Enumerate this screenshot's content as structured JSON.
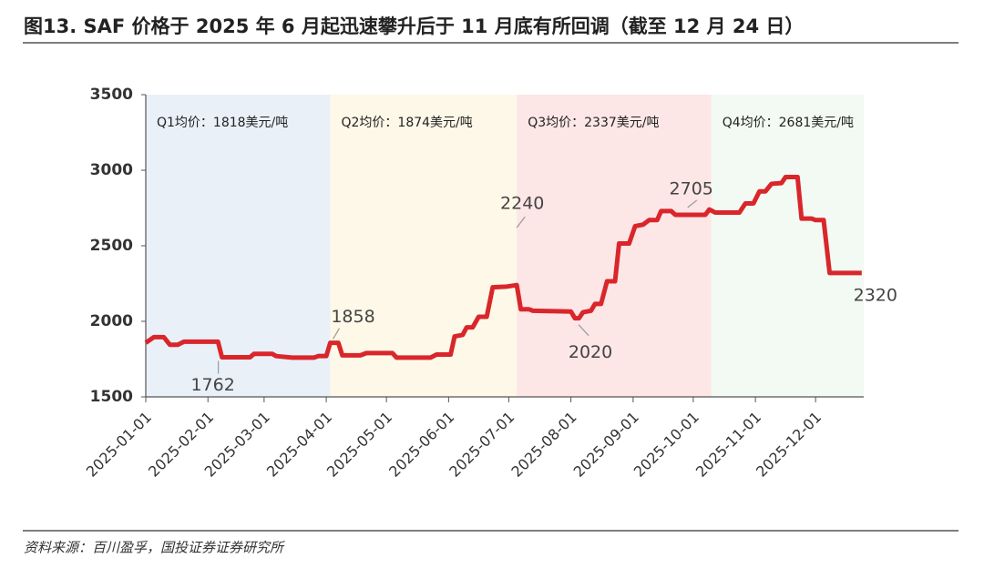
{
  "chart_data": {
    "type": "line",
    "title": "图13. SAF 价格于 2025 年 6 月起迅速攀升后于 11 月底有所回调（截至 12 月 24 日）",
    "source": "资料来源：百川盈孚，国投证券证券研究所",
    "x": [
      "2025-01-01",
      "2025-01-05",
      "2025-01-10",
      "2025-01-13",
      "2025-01-17",
      "2025-01-20",
      "2025-02-06",
      "2025-02-08",
      "2025-02-22",
      "2025-02-24",
      "2025-03-05",
      "2025-03-07",
      "2025-03-15",
      "2025-03-26",
      "2025-03-28",
      "2025-04-01",
      "2025-04-03",
      "2025-04-07",
      "2025-04-09",
      "2025-04-18",
      "2025-04-21",
      "2025-05-04",
      "2025-05-06",
      "2025-05-23",
      "2025-05-26",
      "2025-06-02",
      "2025-06-04",
      "2025-06-08",
      "2025-06-10",
      "2025-06-13",
      "2025-06-16",
      "2025-06-20",
      "2025-06-23",
      "2025-06-30",
      "2025-07-05",
      "2025-07-07",
      "2025-07-11",
      "2025-07-13",
      "2025-08-01",
      "2025-08-03",
      "2025-08-05",
      "2025-08-07",
      "2025-08-11",
      "2025-08-13",
      "2025-08-16",
      "2025-08-19",
      "2025-08-23",
      "2025-08-25",
      "2025-08-30",
      "2025-09-02",
      "2025-09-06",
      "2025-09-09",
      "2025-09-13",
      "2025-09-15",
      "2025-09-20",
      "2025-09-22",
      "2025-10-07",
      "2025-10-09",
      "2025-10-12",
      "2025-10-24",
      "2025-10-27",
      "2025-10-31",
      "2025-11-03",
      "2025-11-06",
      "2025-11-09",
      "2025-11-14",
      "2025-11-16",
      "2025-11-22",
      "2025-11-24",
      "2025-11-29",
      "2025-12-01",
      "2025-12-05",
      "2025-12-08",
      "2025-12-24"
    ],
    "series": [
      {
        "name": "SAF",
        "color": "#d9262b",
        "values": [
          1858,
          1895,
          1895,
          1845,
          1845,
          1865,
          1865,
          1762,
          1762,
          1785,
          1785,
          1770,
          1760,
          1760,
          1770,
          1770,
          1858,
          1858,
          1775,
          1775,
          1790,
          1790,
          1760,
          1760,
          1780,
          1780,
          1900,
          1910,
          1960,
          1960,
          2030,
          2030,
          2225,
          2230,
          2240,
          2080,
          2080,
          2070,
          2065,
          2020,
          2020,
          2060,
          2070,
          2115,
          2115,
          2265,
          2265,
          2515,
          2515,
          2630,
          2640,
          2670,
          2670,
          2730,
          2730,
          2705,
          2705,
          2740,
          2720,
          2720,
          2780,
          2780,
          2860,
          2860,
          2910,
          2915,
          2955,
          2955,
          2680,
          2680,
          2670,
          2670,
          2320,
          2320
        ]
      }
    ],
    "xlim": [
      "2025-01-01",
      "2025-12-25"
    ],
    "xticks": [
      "2025-01-01",
      "2025-02-01",
      "2025-03-01",
      "2025-04-01",
      "2025-05-01",
      "2025-06-01",
      "2025-07-01",
      "2025-08-01",
      "2025-09-01",
      "2025-10-01",
      "2025-11-01",
      "2025-12-01"
    ],
    "ylim": [
      1500,
      3500
    ],
    "yticks": [
      1500,
      2000,
      2500,
      3000,
      3500
    ],
    "regions": [
      {
        "label": "Q1均价：1818美元/吨",
        "start": "2025-01-01",
        "end": "2025-04-03",
        "color": "#e9f0f8"
      },
      {
        "label": "Q2均价：1874美元/吨",
        "start": "2025-04-03",
        "end": "2025-07-05",
        "color": "#fdf8e8"
      },
      {
        "label": "Q3均价：2337美元/吨",
        "start": "2025-07-05",
        "end": "2025-10-10",
        "color": "#fde6e6"
      },
      {
        "label": "Q4均价：2681美元/吨",
        "start": "2025-10-10",
        "end": "2025-12-25",
        "color": "#f3f9f3"
      }
    ],
    "annotations": [
      {
        "label": "1762",
        "x": "2025-02-08",
        "value": 1762
      },
      {
        "label": "1858",
        "x": "2025-04-03",
        "value": 1858
      },
      {
        "label": "2240",
        "x": "2025-07-05",
        "value": 2240
      },
      {
        "label": "2020",
        "x": "2025-08-03",
        "value": 2020
      },
      {
        "label": "2705",
        "x": "2025-09-30",
        "value": 2705
      },
      {
        "label": "2320",
        "x": "2025-12-24",
        "value": 2320
      }
    ]
  }
}
